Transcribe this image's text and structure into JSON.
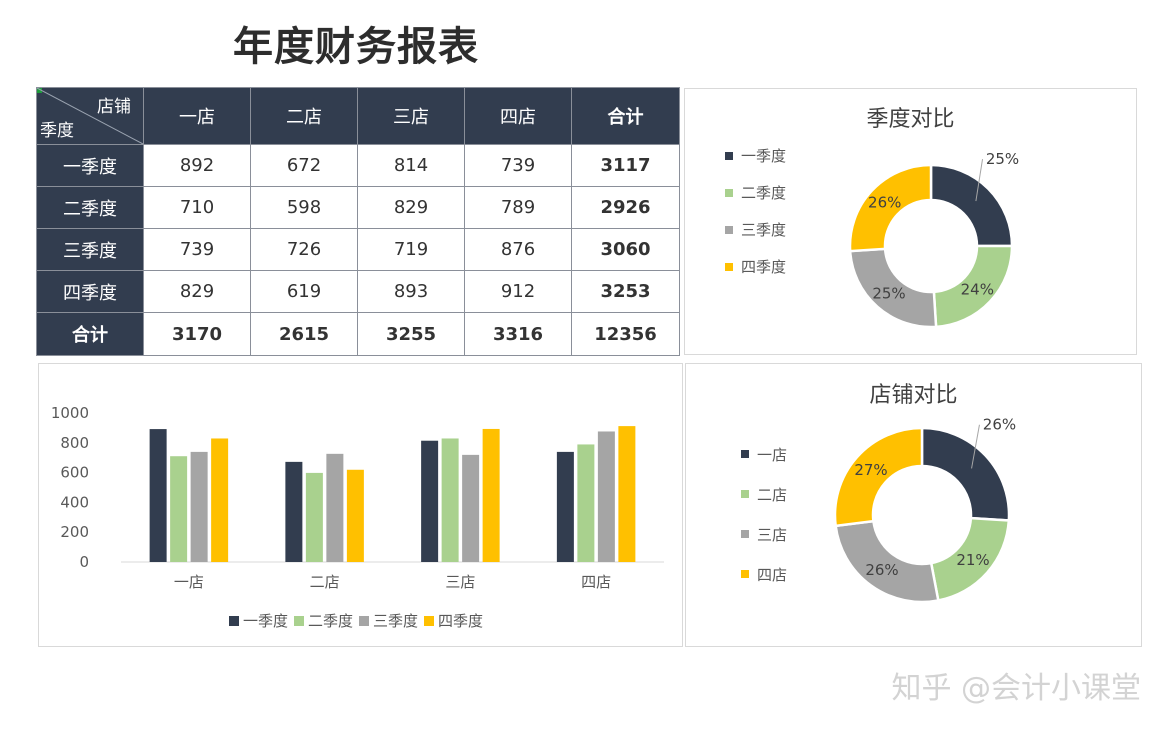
{
  "title": "年度财务报表",
  "table": {
    "corner_top": "店铺",
    "corner_bottom": "季度",
    "columns": [
      "一店",
      "二店",
      "三店",
      "四店",
      "合计"
    ],
    "rows": [
      {
        "label": "一季度",
        "values": [
          "892",
          "672",
          "814",
          "739"
        ],
        "total": "3117"
      },
      {
        "label": "二季度",
        "values": [
          "710",
          "598",
          "829",
          "789"
        ],
        "total": "2926"
      },
      {
        "label": "三季度",
        "values": [
          "739",
          "726",
          "719",
          "876"
        ],
        "total": "3060"
      },
      {
        "label": "四季度",
        "values": [
          "829",
          "619",
          "893",
          "912"
        ],
        "total": "3253"
      }
    ],
    "total_row": {
      "label": "合计",
      "values": [
        "3170",
        "2615",
        "3255",
        "3316"
      ],
      "total": "12356"
    }
  },
  "colors": {
    "dark": "#323d4f",
    "green": "#a9d18e",
    "gray": "#a5a5a5",
    "yellow": "#ffc000"
  },
  "chart_data": [
    {
      "type": "pie",
      "title": "季度对比",
      "legend_position": "left",
      "labels": [
        "一季度",
        "二季度",
        "三季度",
        "四季度"
      ],
      "values": [
        25,
        24,
        25,
        26
      ],
      "value_labels": [
        "25%",
        "24%",
        "25%",
        "26%"
      ],
      "colors": [
        "#323d4f",
        "#a9d18e",
        "#a5a5a5",
        "#ffc000"
      ]
    },
    {
      "type": "bar",
      "title": "",
      "categories": [
        "一店",
        "二店",
        "三店",
        "四店"
      ],
      "series": [
        {
          "name": "一季度",
          "values": [
            892,
            672,
            814,
            739
          ],
          "color": "#323d4f"
        },
        {
          "name": "二季度",
          "values": [
            710,
            598,
            829,
            789
          ],
          "color": "#a9d18e"
        },
        {
          "name": "三季度",
          "values": [
            739,
            726,
            719,
            876
          ],
          "color": "#a5a5a5"
        },
        {
          "name": "四季度",
          "values": [
            829,
            619,
            893,
            912
          ],
          "color": "#ffc000"
        }
      ],
      "ylim": [
        0,
        1000
      ],
      "yticks": [
        "1000",
        "800",
        "600",
        "400",
        "200",
        "0"
      ],
      "grid": false,
      "legend_position": "bottom"
    },
    {
      "type": "pie",
      "title": "店铺对比",
      "legend_position": "left",
      "labels": [
        "一店",
        "二店",
        "三店",
        "四店"
      ],
      "values": [
        26,
        21,
        26,
        27
      ],
      "value_labels": [
        "26%",
        "21%",
        "26%",
        "27%"
      ],
      "colors": [
        "#323d4f",
        "#a9d18e",
        "#a5a5a5",
        "#ffc000"
      ]
    }
  ],
  "watermark": "知乎 @会计小课堂"
}
